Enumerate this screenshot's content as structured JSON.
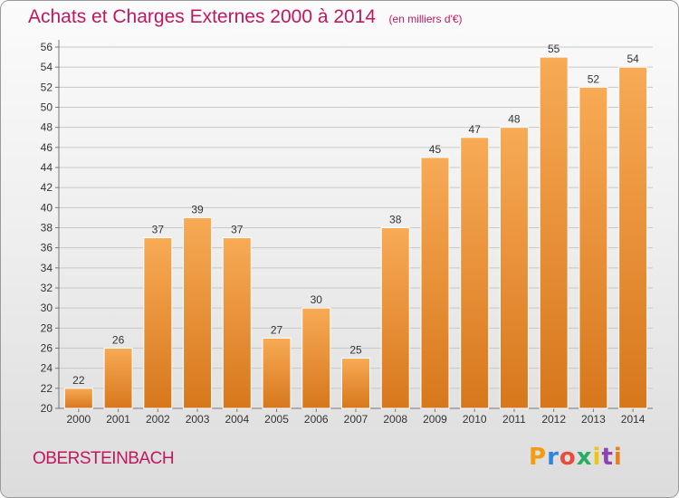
{
  "header": {
    "title": "Achats et Charges Externes 2000 à 2014",
    "unit": "(en milliers d'€)"
  },
  "footer": {
    "commune": "OBERSTEINBACH"
  },
  "logo": {
    "text": "Proxiti",
    "letter_colors": [
      "#f39c12",
      "#2e86de",
      "#e74c3c",
      "#27ae60",
      "#f1c40f",
      "#8e44ad",
      "#e67e22"
    ]
  },
  "colors": {
    "bar_light": "#f8aa55",
    "bar_dark": "#d7771c",
    "title": "#c0185e",
    "grid": "#c8c8c8"
  },
  "chart_data": {
    "type": "bar",
    "title": "Achats et Charges Externes 2000 à 2014",
    "subtitle": "(en milliers d'€)",
    "categories": [
      "2000",
      "2001",
      "2002",
      "2003",
      "2004",
      "2005",
      "2006",
      "2007",
      "2008",
      "2009",
      "2010",
      "2011",
      "2012",
      "2013",
      "2014"
    ],
    "values": [
      22,
      26,
      37,
      39,
      37,
      27,
      30,
      25,
      38,
      45,
      47,
      48,
      55,
      52,
      54
    ],
    "ylim": [
      20,
      56
    ],
    "yticks": [
      20,
      22,
      24,
      26,
      28,
      30,
      32,
      34,
      36,
      38,
      40,
      42,
      44,
      46,
      48,
      50,
      52,
      54,
      56
    ],
    "grid": true,
    "data_labels": true
  }
}
